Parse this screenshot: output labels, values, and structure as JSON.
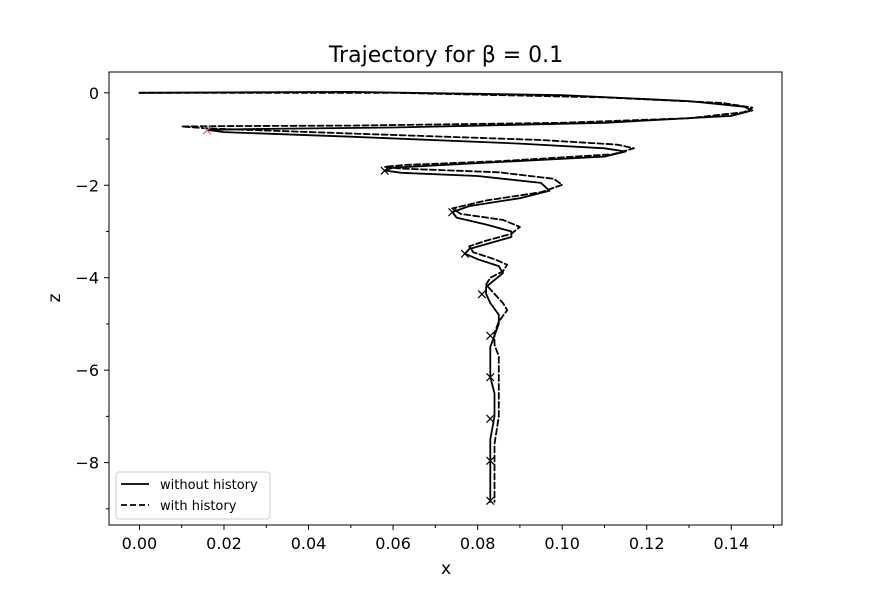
{
  "chart_data": {
    "type": "line",
    "title": "Trajectory for β = 0.1",
    "xlabel": "x",
    "ylabel": "z",
    "xlim": [
      -0.0072,
      0.152
    ],
    "ylim": [
      -9.35,
      0.45
    ],
    "xticks": [
      0.0,
      0.02,
      0.04,
      0.06,
      0.08,
      0.1,
      0.12,
      0.14
    ],
    "xtick_labels": [
      "0.00",
      "0.02",
      "0.04",
      "0.06",
      "0.08",
      "0.10",
      "0.12",
      "0.14"
    ],
    "yticks": [
      0,
      -2,
      -4,
      -6,
      -8
    ],
    "ytick_labels": [
      "0",
      "−2",
      "−4",
      "−6",
      "−8"
    ],
    "grid": false,
    "legend_position": "lower-left",
    "series": [
      {
        "name": "without history",
        "line_style": "solid",
        "color": "#000000",
        "x": [
          0.0,
          0.05,
          0.1,
          0.13,
          0.143,
          0.145,
          0.14,
          0.11,
          0.06,
          0.03,
          0.016,
          0.02,
          0.05,
          0.09,
          0.11,
          0.115,
          0.11,
          0.08,
          0.06,
          0.058,
          0.062,
          0.08,
          0.095,
          0.097,
          0.09,
          0.078,
          0.074,
          0.075,
          0.082,
          0.088,
          0.088,
          0.083,
          0.078,
          0.077,
          0.08,
          0.085,
          0.086,
          0.084,
          0.082,
          0.082,
          0.083,
          0.085,
          0.085,
          0.084,
          0.083,
          0.083,
          0.083,
          0.084,
          0.084,
          0.083,
          0.083,
          0.083,
          0.083,
          0.083,
          0.083,
          0.083
        ],
        "z": [
          0.0,
          0.02,
          -0.05,
          -0.18,
          -0.3,
          -0.38,
          -0.5,
          -0.65,
          -0.75,
          -0.78,
          -0.8,
          -0.85,
          -0.95,
          -1.1,
          -1.2,
          -1.27,
          -1.38,
          -1.52,
          -1.62,
          -1.68,
          -1.73,
          -1.8,
          -1.95,
          -2.12,
          -2.28,
          -2.45,
          -2.58,
          -2.7,
          -2.85,
          -3.0,
          -3.12,
          -3.25,
          -3.38,
          -3.48,
          -3.6,
          -3.75,
          -3.9,
          -4.05,
          -4.2,
          -4.35,
          -4.55,
          -4.8,
          -5.0,
          -5.25,
          -5.5,
          -5.8,
          -6.15,
          -6.5,
          -7.0,
          -7.5,
          -7.9,
          -8.2,
          -8.5,
          -8.7,
          -8.8,
          -8.85
        ]
      },
      {
        "name": "with history",
        "line_style": "dashed",
        "color": "#000000",
        "x": [
          0.0,
          0.06,
          0.11,
          0.138,
          0.145,
          0.143,
          0.13,
          0.1,
          0.05,
          0.02,
          0.01,
          0.016,
          0.05,
          0.095,
          0.113,
          0.117,
          0.112,
          0.085,
          0.063,
          0.058,
          0.062,
          0.085,
          0.098,
          0.1,
          0.095,
          0.082,
          0.074,
          0.076,
          0.086,
          0.09,
          0.088,
          0.082,
          0.078,
          0.079,
          0.084,
          0.087,
          0.086,
          0.083,
          0.082,
          0.084,
          0.086,
          0.087,
          0.085,
          0.084,
          0.084,
          0.085,
          0.085,
          0.085,
          0.085,
          0.084,
          0.084,
          0.084,
          0.084,
          0.084
        ],
        "z": [
          0.0,
          0.0,
          -0.1,
          -0.22,
          -0.32,
          -0.42,
          -0.55,
          -0.65,
          -0.71,
          -0.72,
          -0.73,
          -0.77,
          -0.88,
          -1.02,
          -1.12,
          -1.2,
          -1.33,
          -1.48,
          -1.56,
          -1.6,
          -1.64,
          -1.72,
          -1.86,
          -1.99,
          -2.15,
          -2.33,
          -2.5,
          -2.62,
          -2.75,
          -2.9,
          -3.05,
          -3.2,
          -3.32,
          -3.45,
          -3.6,
          -3.72,
          -3.86,
          -4.0,
          -4.15,
          -4.35,
          -4.55,
          -4.7,
          -4.95,
          -5.2,
          -5.45,
          -5.7,
          -6.0,
          -6.4,
          -7.0,
          -7.6,
          -8.2,
          -8.6,
          -8.8,
          -8.85
        ]
      }
    ],
    "markers": [
      {
        "symbol": "×",
        "color": "#cc6699",
        "x": 0.016,
        "z": -0.8
      },
      {
        "symbol": "×",
        "color": "#000000",
        "x": 0.058,
        "z": -1.68
      },
      {
        "symbol": "×",
        "color": "#000000",
        "x": 0.074,
        "z": -2.58
      },
      {
        "symbol": "×",
        "color": "#000000",
        "x": 0.077,
        "z": -3.48
      },
      {
        "symbol": "×",
        "color": "#000000",
        "x": 0.081,
        "z": -4.35
      },
      {
        "symbol": "×",
        "color": "#000000",
        "x": 0.083,
        "z": -5.25
      },
      {
        "symbol": "×",
        "color": "#000000",
        "x": 0.083,
        "z": -6.15
      },
      {
        "symbol": "×",
        "color": "#000000",
        "x": 0.083,
        "z": -7.05
      },
      {
        "symbol": "×",
        "color": "#000000",
        "x": 0.083,
        "z": -7.95
      },
      {
        "symbol": "×",
        "color": "#000000",
        "x": 0.083,
        "z": -8.82
      }
    ]
  }
}
